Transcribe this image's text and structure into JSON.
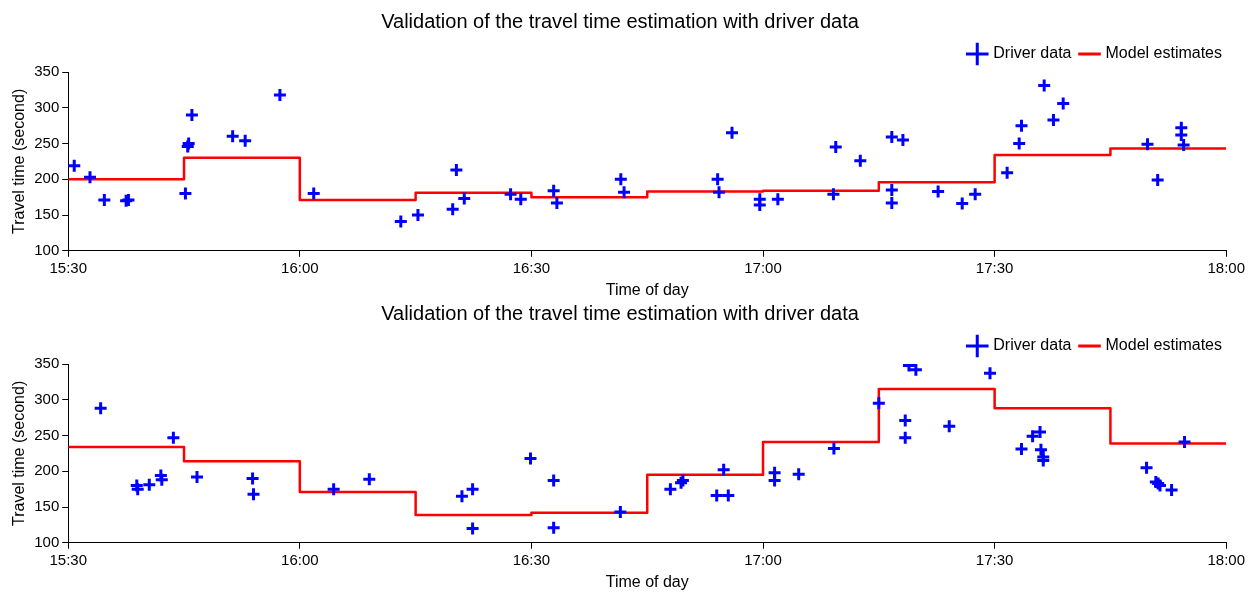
{
  "chart_data": [
    {
      "type": "scatter",
      "title": "Validation of the travel time estimation with driver data",
      "xlabel": "Time of day",
      "ylabel": "Travel time (second)",
      "xlim": [
        15.5,
        18
      ],
      "ylim": [
        100,
        350
      ],
      "xticks": [
        {
          "value": 15.5,
          "label": "15:30"
        },
        {
          "value": 16,
          "label": "16:00"
        },
        {
          "value": 16.5,
          "label": "16:30"
        },
        {
          "value": 17,
          "label": "17:00"
        },
        {
          "value": 17.5,
          "label": "17:30"
        },
        {
          "value": 18,
          "label": "18:00"
        }
      ],
      "yticks": [
        100,
        150,
        200,
        250,
        300,
        350
      ],
      "grid": false,
      "legend": "top right",
      "series": [
        {
          "name": "Driver data",
          "marker": "cross",
          "color": "#0000ff",
          "x": [
            15.513,
            15.547,
            15.578,
            15.625,
            15.63,
            15.753,
            15.758,
            15.76,
            15.767,
            15.855,
            15.882,
            15.957,
            16.03,
            16.218,
            16.255,
            16.33,
            16.338,
            16.355,
            16.455,
            16.477,
            16.548,
            16.555,
            16.693,
            16.7,
            16.902,
            16.905,
            16.933,
            16.993,
            16.993,
            17.032,
            17.152,
            17.157,
            17.21,
            17.278,
            17.278,
            17.278,
            17.302,
            17.378,
            17.43,
            17.458,
            17.527,
            17.553,
            17.558,
            17.607,
            17.627,
            17.648,
            17.83,
            17.852,
            17.903,
            17.903,
            17.908
          ],
          "values": [
            219,
            203,
            171,
            170,
            171,
            180,
            246,
            250,
            290,
            260,
            254,
            318,
            180,
            141,
            150,
            158,
            213,
            173,
            179,
            172,
            184,
            167,
            200,
            182,
            200,
            182,
            265,
            172,
            164,
            172,
            179,
            245,
            226,
            185,
            259,
            167,
            255,
            183,
            166,
            179,
            209,
            250,
            275,
            331,
            283,
            306,
            249,
            199,
            272,
            262,
            248
          ]
        },
        {
          "name": "Model estimates",
          "type": "step",
          "marker": "none",
          "color": "#ff0000",
          "x": [
            15.5,
            15.75,
            16,
            16.25,
            16.5,
            16.75,
            17,
            17.25,
            17.5,
            17.75,
            18
          ],
          "values": [
            200,
            230,
            171,
            181,
            175,
            183,
            184,
            196,
            234,
            243,
            243
          ]
        }
      ]
    },
    {
      "type": "scatter",
      "title": "Validation of the travel time estimation with driver data",
      "xlabel": "Time of day",
      "ylabel": "Travel time (second)",
      "xlim": [
        15.5,
        18
      ],
      "ylim": [
        100,
        350
      ],
      "xticks": [
        {
          "value": 15.5,
          "label": "15:30"
        },
        {
          "value": 16,
          "label": "16:00"
        },
        {
          "value": 16.5,
          "label": "16:30"
        },
        {
          "value": 17,
          "label": "17:00"
        },
        {
          "value": 17.5,
          "label": "17:30"
        },
        {
          "value": 18,
          "label": "18:00"
        }
      ],
      "yticks": [
        100,
        150,
        200,
        250,
        300,
        350
      ],
      "grid": false,
      "legend": "top right",
      "series": [
        {
          "name": "Driver data",
          "marker": "cross",
          "color": "#0000ff",
          "x": [
            15.57,
            15.648,
            15.65,
            15.675,
            15.7,
            15.702,
            15.727,
            15.778,
            15.898,
            15.9,
            16.073,
            16.15,
            16.35,
            16.373,
            16.373,
            16.498,
            16.548,
            16.548,
            16.692,
            16.8,
            16.823,
            16.827,
            16.9,
            16.915,
            16.925,
            17.025,
            17.025,
            17.077,
            17.153,
            17.25,
            17.307,
            17.307,
            17.315,
            17.33,
            17.402,
            17.49,
            17.558,
            17.582,
            17.598,
            17.6,
            17.605,
            17.605,
            17.828,
            17.848,
            17.853,
            17.857,
            17.882,
            17.91
          ],
          "values": [
            288,
            180,
            175,
            181,
            194,
            188,
            247,
            192,
            190,
            168,
            175,
            189,
            165,
            175,
            120,
            218,
            187,
            121,
            143,
            175,
            184,
            187,
            166,
            202,
            166,
            198,
            187,
            196,
            232,
            295,
            271,
            247,
            348,
            342,
            263,
            337,
            231,
            249,
            255,
            230,
            215,
            220,
            205,
            185,
            183,
            180,
            174,
            241
          ]
        },
        {
          "name": "Model estimates",
          "type": "step",
          "marker": "none",
          "color": "#ff0000",
          "x": [
            15.5,
            15.75,
            16,
            16.25,
            16.5,
            16.75,
            17,
            17.25,
            17.5,
            17.75,
            18
          ],
          "values": [
            234,
            214,
            171,
            139,
            142,
            195,
            241,
            315,
            288,
            239,
            239
          ]
        }
      ]
    }
  ]
}
